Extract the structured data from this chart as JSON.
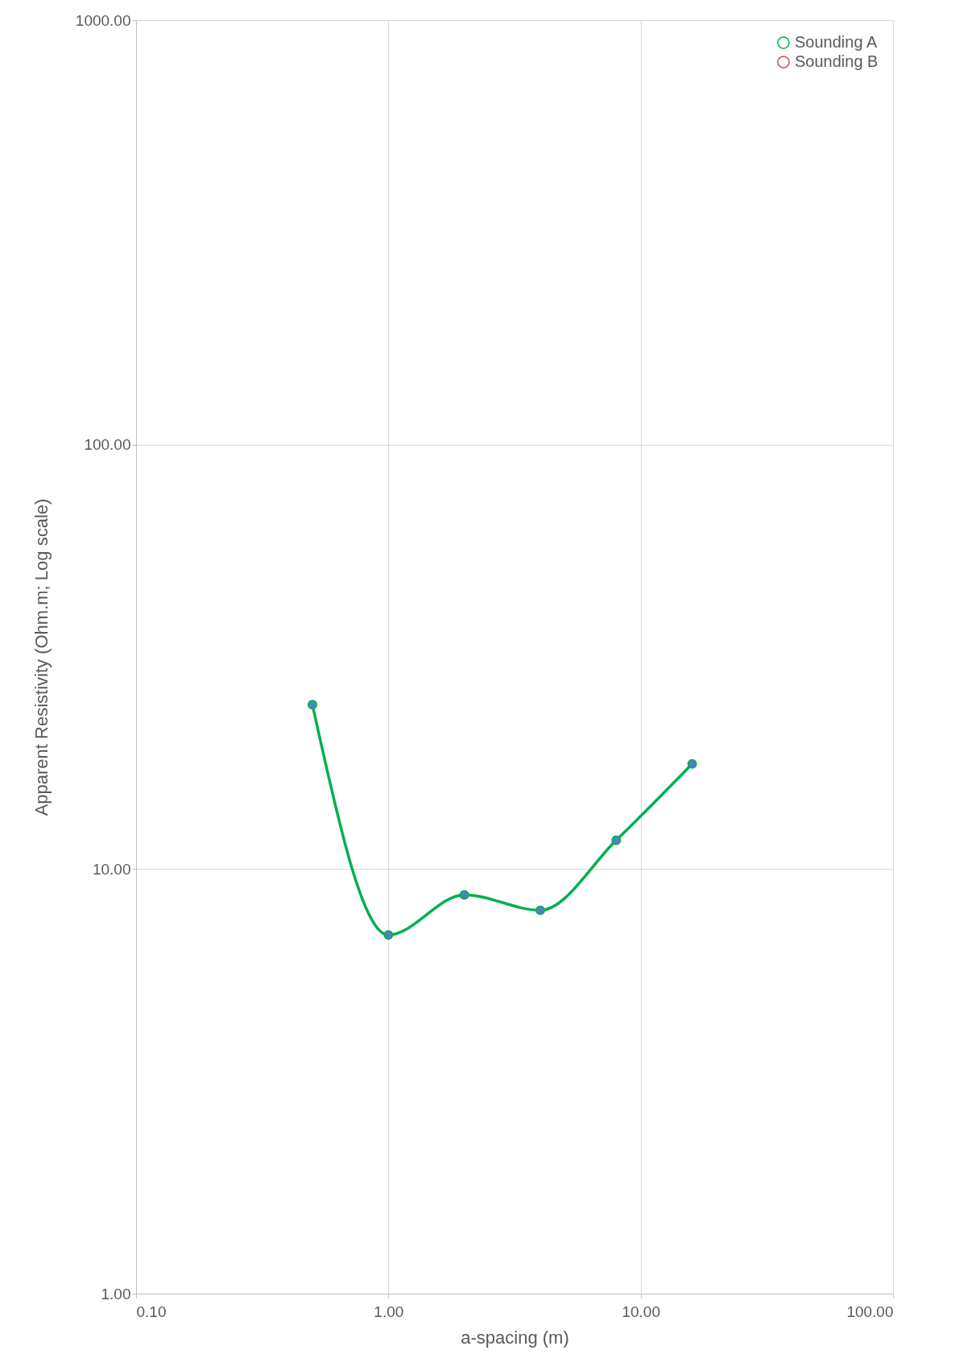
{
  "chart_data": {
    "type": "line",
    "xlabel": "a-spacing (m)",
    "ylabel": "Apparent Resistivity (Ohm.m; Log scale)",
    "x": [
      0.5,
      1,
      2,
      4,
      8,
      16
    ],
    "series": [
      {
        "name": "Sounding A",
        "color": "#00b050",
        "values": [
          24.4,
          7.0,
          8.7,
          8.0,
          11.7,
          17.7
        ]
      },
      {
        "name": "Sounding B",
        "color": "#c0504d",
        "values": [
          null,
          null,
          null,
          null,
          null,
          null
        ]
      }
    ],
    "log": "xy",
    "xlim": [
      0.1,
      100
    ],
    "ylim": [
      1,
      1000
    ],
    "xticks": [
      {
        "value": 0.1,
        "label": "0.10"
      },
      {
        "value": 1,
        "label": "1.00"
      },
      {
        "value": 10,
        "label": "10.00"
      },
      {
        "value": 100,
        "label": "100.00"
      }
    ],
    "yticks": [
      {
        "value": 1,
        "label": "1.00"
      },
      {
        "value": 10,
        "label": "10.00"
      },
      {
        "value": 100,
        "label": "100.00"
      },
      {
        "value": 1000,
        "label": "1000.00"
      }
    ],
    "grid": true,
    "legend": "top right",
    "marker": "circle",
    "line_style": "solid"
  }
}
